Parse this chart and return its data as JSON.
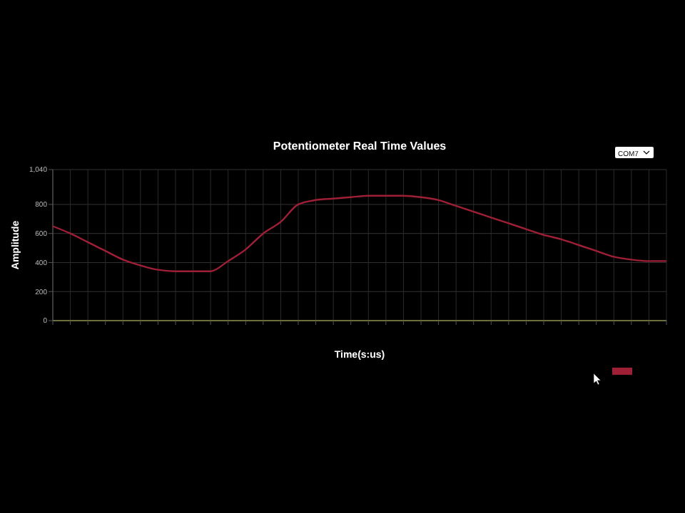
{
  "chart_data": {
    "type": "line",
    "title": "Potentiometer Real Time Values",
    "xlabel": "Time(s:us)",
    "ylabel": "Amplitude",
    "categories": [
      null,
      null,
      null,
      null,
      null,
      null,
      null,
      null,
      null,
      null,
      null,
      null,
      null,
      null,
      null,
      null,
      null,
      null,
      null,
      null,
      null,
      null,
      null,
      null,
      null,
      null,
      null,
      null,
      null,
      null,
      null,
      null,
      null,
      null,
      null,
      null
    ],
    "series": [
      {
        "color": "#9e1f36",
        "values": [
          650,
          600,
          540,
          480,
          420,
          380,
          350,
          340,
          340,
          340,
          410,
          490,
          600,
          680,
          800,
          830,
          840,
          850,
          860,
          860,
          860,
          850,
          830,
          790,
          750,
          710,
          670,
          630,
          590,
          560,
          520,
          480,
          440,
          420,
          410,
          410
        ]
      }
    ],
    "ylim": [
      0,
      1040
    ],
    "yticks": [
      0,
      200,
      400,
      600,
      800,
      {
        "value": 1040,
        "label": "1,040"
      }
    ],
    "grid": true,
    "marker": "none",
    "line_style": "solid",
    "annotations": [
      "COM7"
    ]
  }
}
